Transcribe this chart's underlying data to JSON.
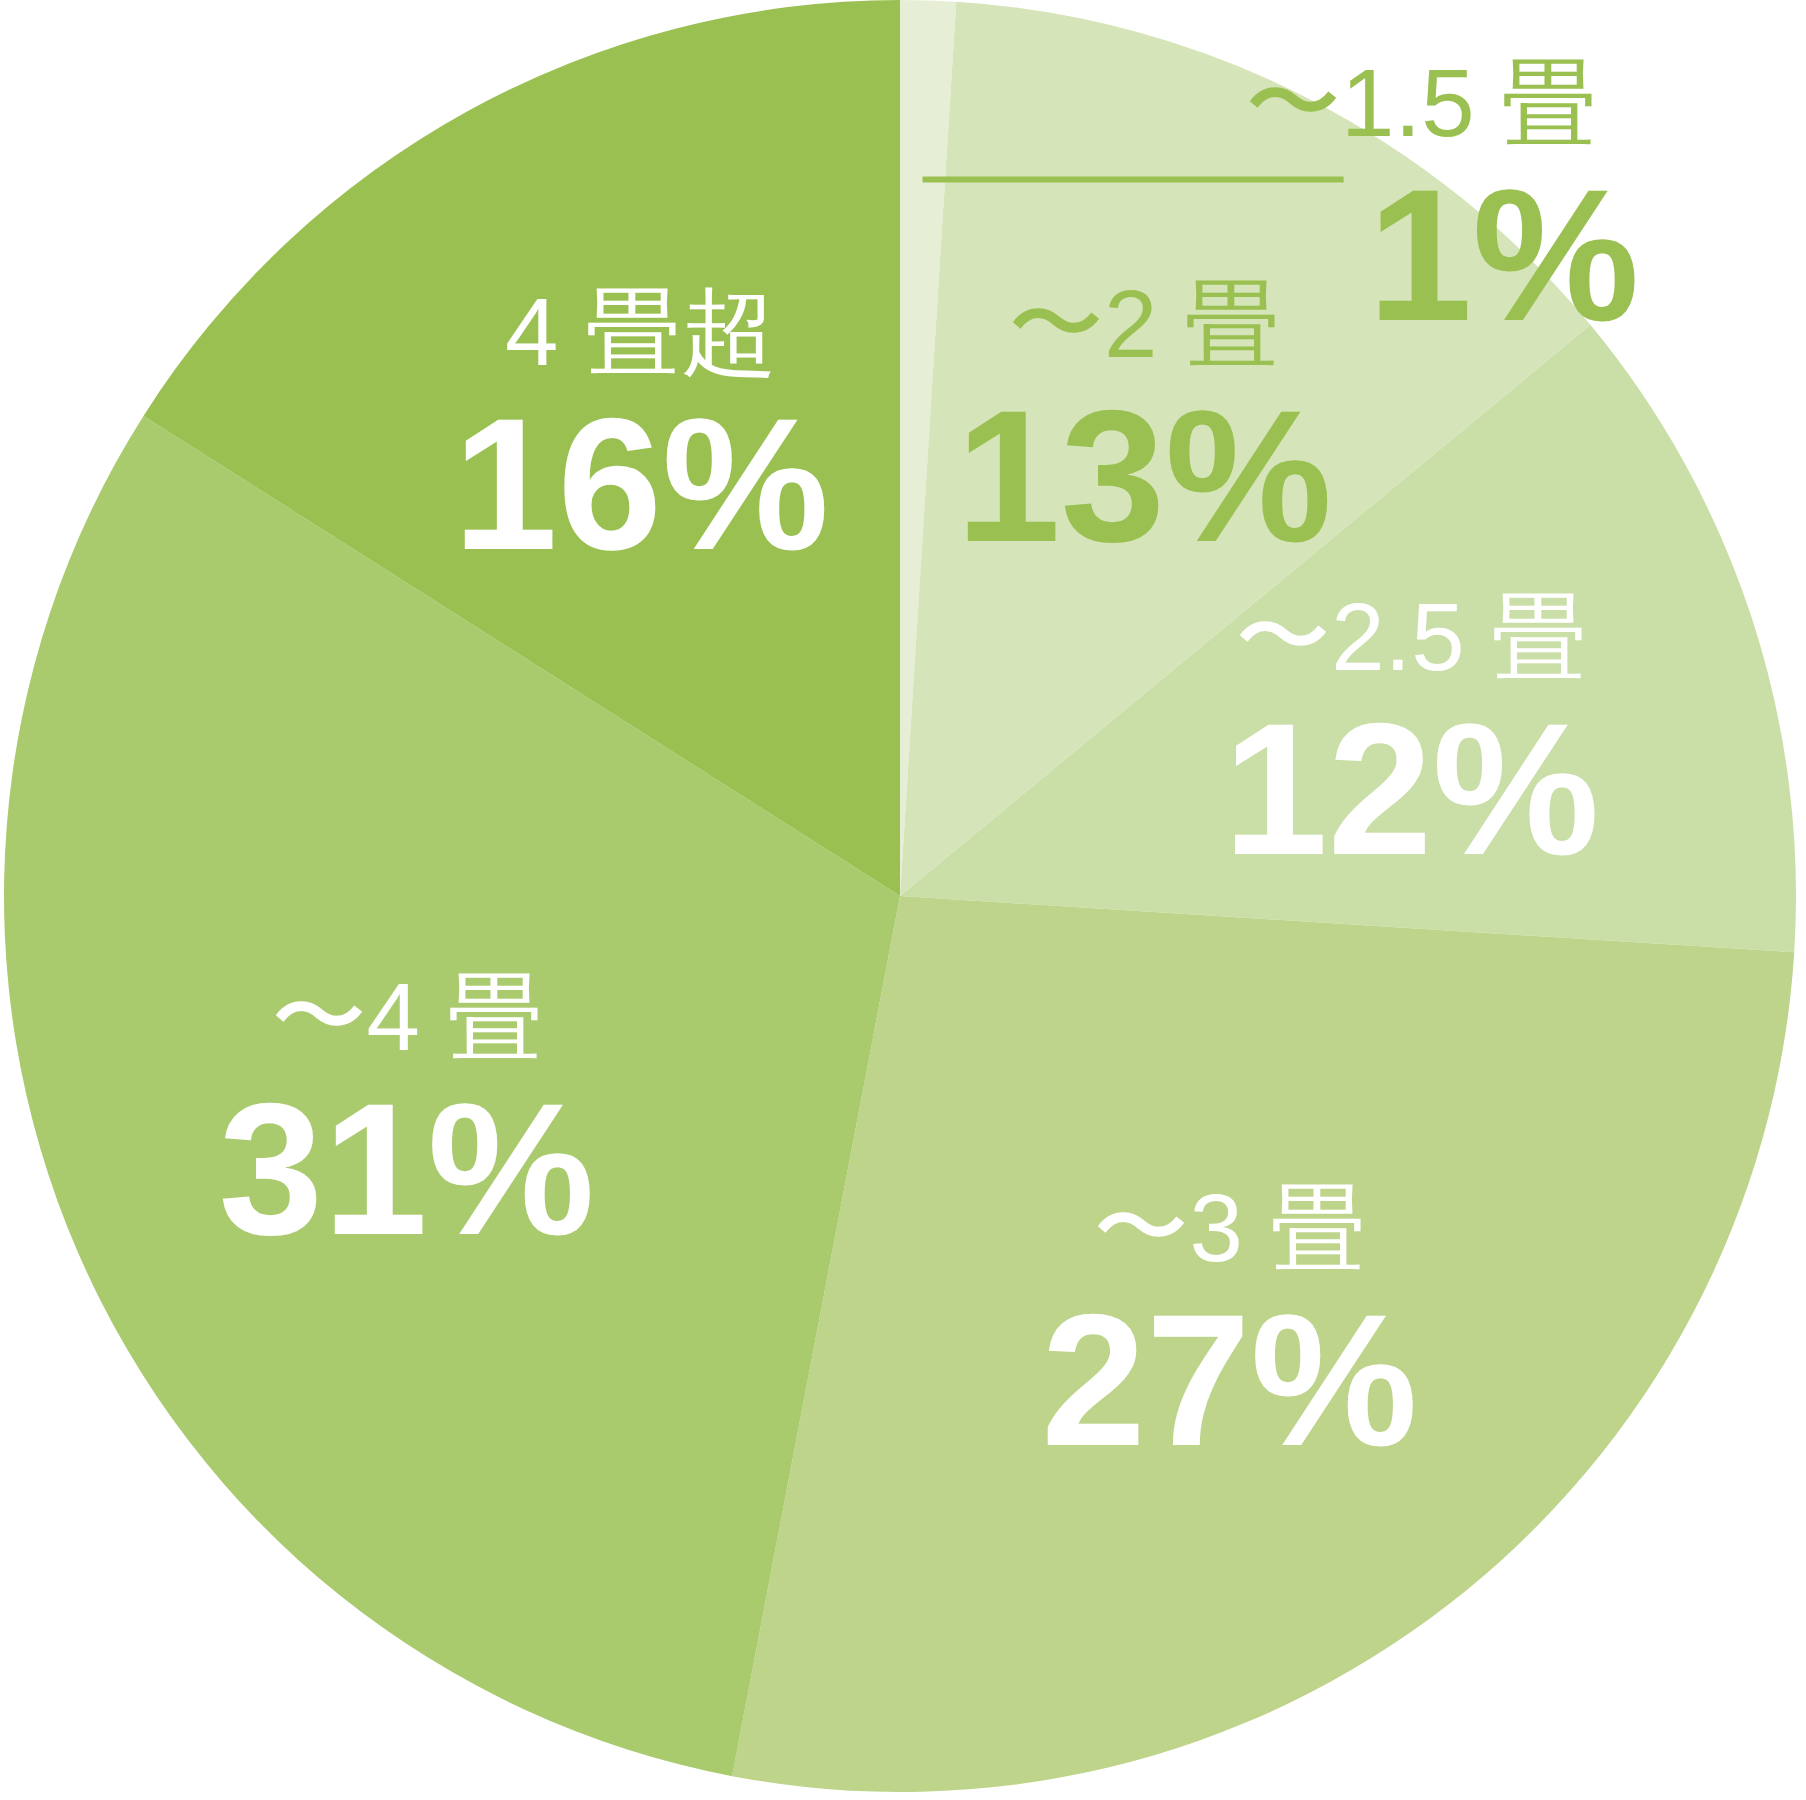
{
  "chart_data": {
    "type": "pie",
    "categories": [
      "〜1.5 畳",
      "〜2 畳",
      "〜2.5 畳",
      "〜3 畳",
      "〜4 畳",
      "4 畳超"
    ],
    "values": [
      1,
      13,
      12,
      27,
      31,
      16
    ],
    "colors": [
      "#e6efd5",
      "#d6e5b9",
      "#cadfa7",
      "#bdd48a",
      "#a9ca6d",
      "#9bc052"
    ],
    "value_labels": [
      "1%",
      "13%",
      "12%",
      "27%",
      "31%",
      "16%"
    ]
  }
}
